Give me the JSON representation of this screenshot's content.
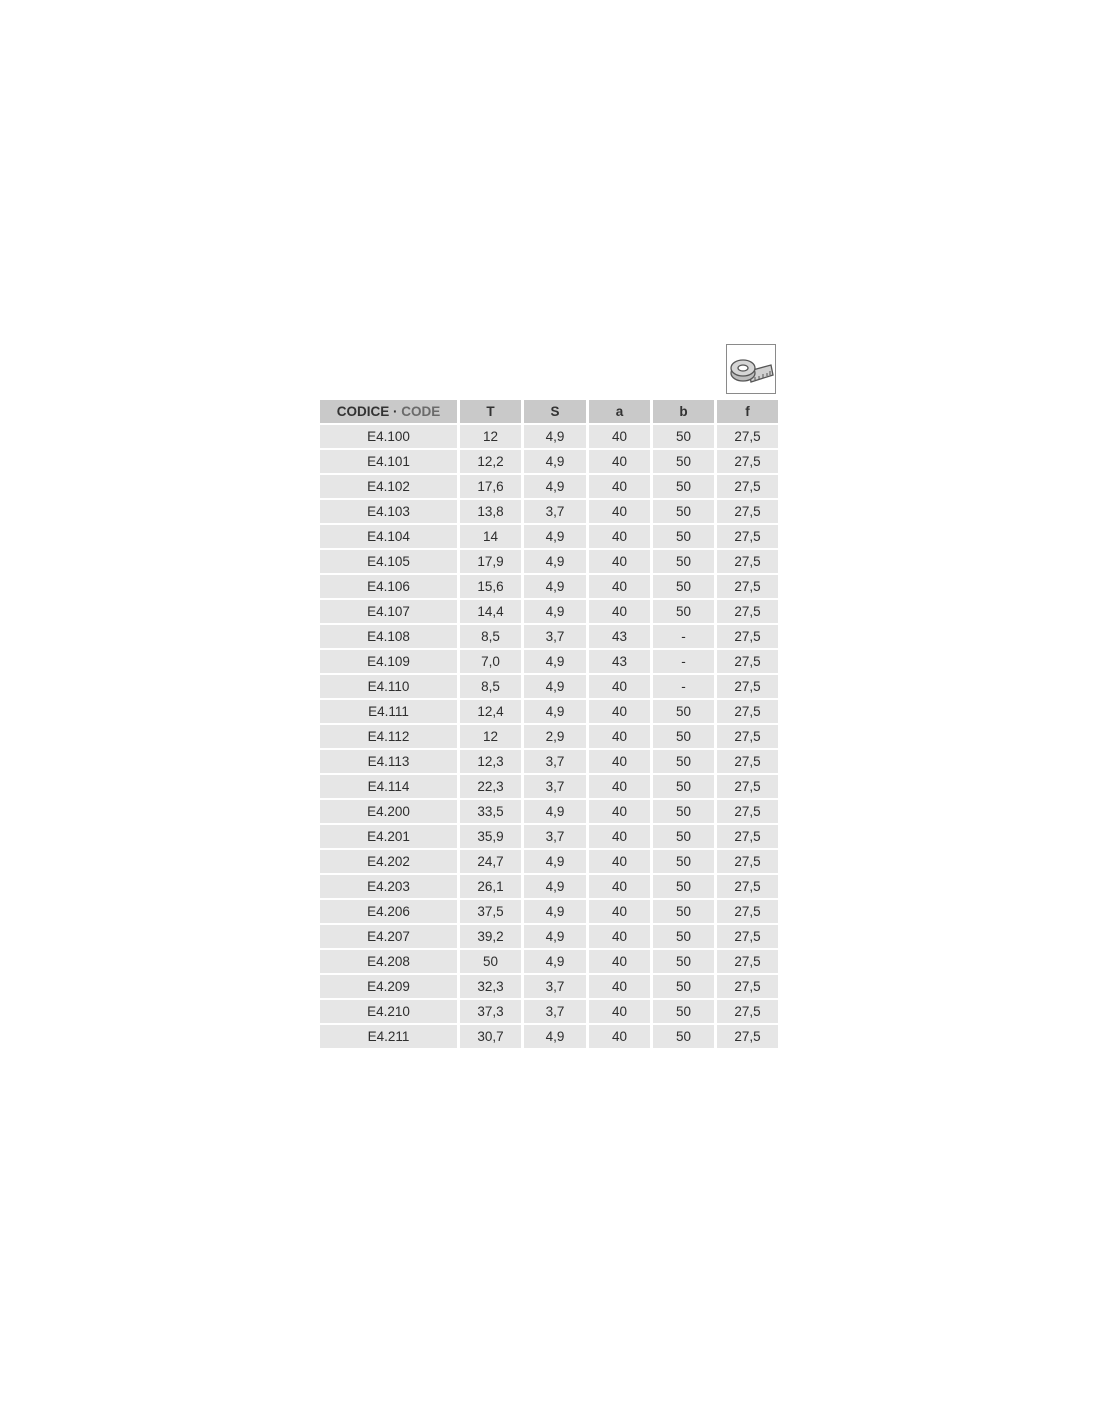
{
  "icon": "measuring-tape-icon",
  "table": {
    "header": {
      "code_it": "CODICE",
      "separator": " · ",
      "code_en": "CODE",
      "columns": [
        "T",
        "S",
        "a",
        "b",
        "f"
      ]
    },
    "rows": [
      [
        "E4.100",
        "12",
        "4,9",
        "40",
        "50",
        "27,5"
      ],
      [
        "E4.101",
        "12,2",
        "4,9",
        "40",
        "50",
        "27,5"
      ],
      [
        "E4.102",
        "17,6",
        "4,9",
        "40",
        "50",
        "27,5"
      ],
      [
        "E4.103",
        "13,8",
        "3,7",
        "40",
        "50",
        "27,5"
      ],
      [
        "E4.104",
        "14",
        "4,9",
        "40",
        "50",
        "27,5"
      ],
      [
        "E4.105",
        "17,9",
        "4,9",
        "40",
        "50",
        "27,5"
      ],
      [
        "E4.106",
        "15,6",
        "4,9",
        "40",
        "50",
        "27,5"
      ],
      [
        "E4.107",
        "14,4",
        "4,9",
        "40",
        "50",
        "27,5"
      ],
      [
        "E4.108",
        "8,5",
        "3,7",
        "43",
        "-",
        "27,5"
      ],
      [
        "E4.109",
        "7,0",
        "4,9",
        "43",
        "-",
        "27,5"
      ],
      [
        "E4.110",
        "8,5",
        "4,9",
        "40",
        "-",
        "27,5"
      ],
      [
        "E4.111",
        "12,4",
        "4,9",
        "40",
        "50",
        "27,5"
      ],
      [
        "E4.112",
        "12",
        "2,9",
        "40",
        "50",
        "27,5"
      ],
      [
        "E4.113",
        "12,3",
        "3,7",
        "40",
        "50",
        "27,5"
      ],
      [
        "E4.114",
        "22,3",
        "3,7",
        "40",
        "50",
        "27,5"
      ],
      [
        "E4.200",
        "33,5",
        "4,9",
        "40",
        "50",
        "27,5"
      ],
      [
        "E4.201",
        "35,9",
        "3,7",
        "40",
        "50",
        "27,5"
      ],
      [
        "E4.202",
        "24,7",
        "4,9",
        "40",
        "50",
        "27,5"
      ],
      [
        "E4.203",
        "26,1",
        "4,9",
        "40",
        "50",
        "27,5"
      ],
      [
        "E4.206",
        "37,5",
        "4,9",
        "40",
        "50",
        "27,5"
      ],
      [
        "E4.207",
        "39,2",
        "4,9",
        "40",
        "50",
        "27,5"
      ],
      [
        "E4.208",
        "50",
        "4,9",
        "40",
        "50",
        "27,5"
      ],
      [
        "E4.209",
        "32,3",
        "3,7",
        "40",
        "50",
        "27,5"
      ],
      [
        "E4.210",
        "37,3",
        "3,7",
        "40",
        "50",
        "27,5"
      ],
      [
        "E4.211",
        "30,7",
        "4,9",
        "40",
        "50",
        "27,5"
      ]
    ]
  }
}
